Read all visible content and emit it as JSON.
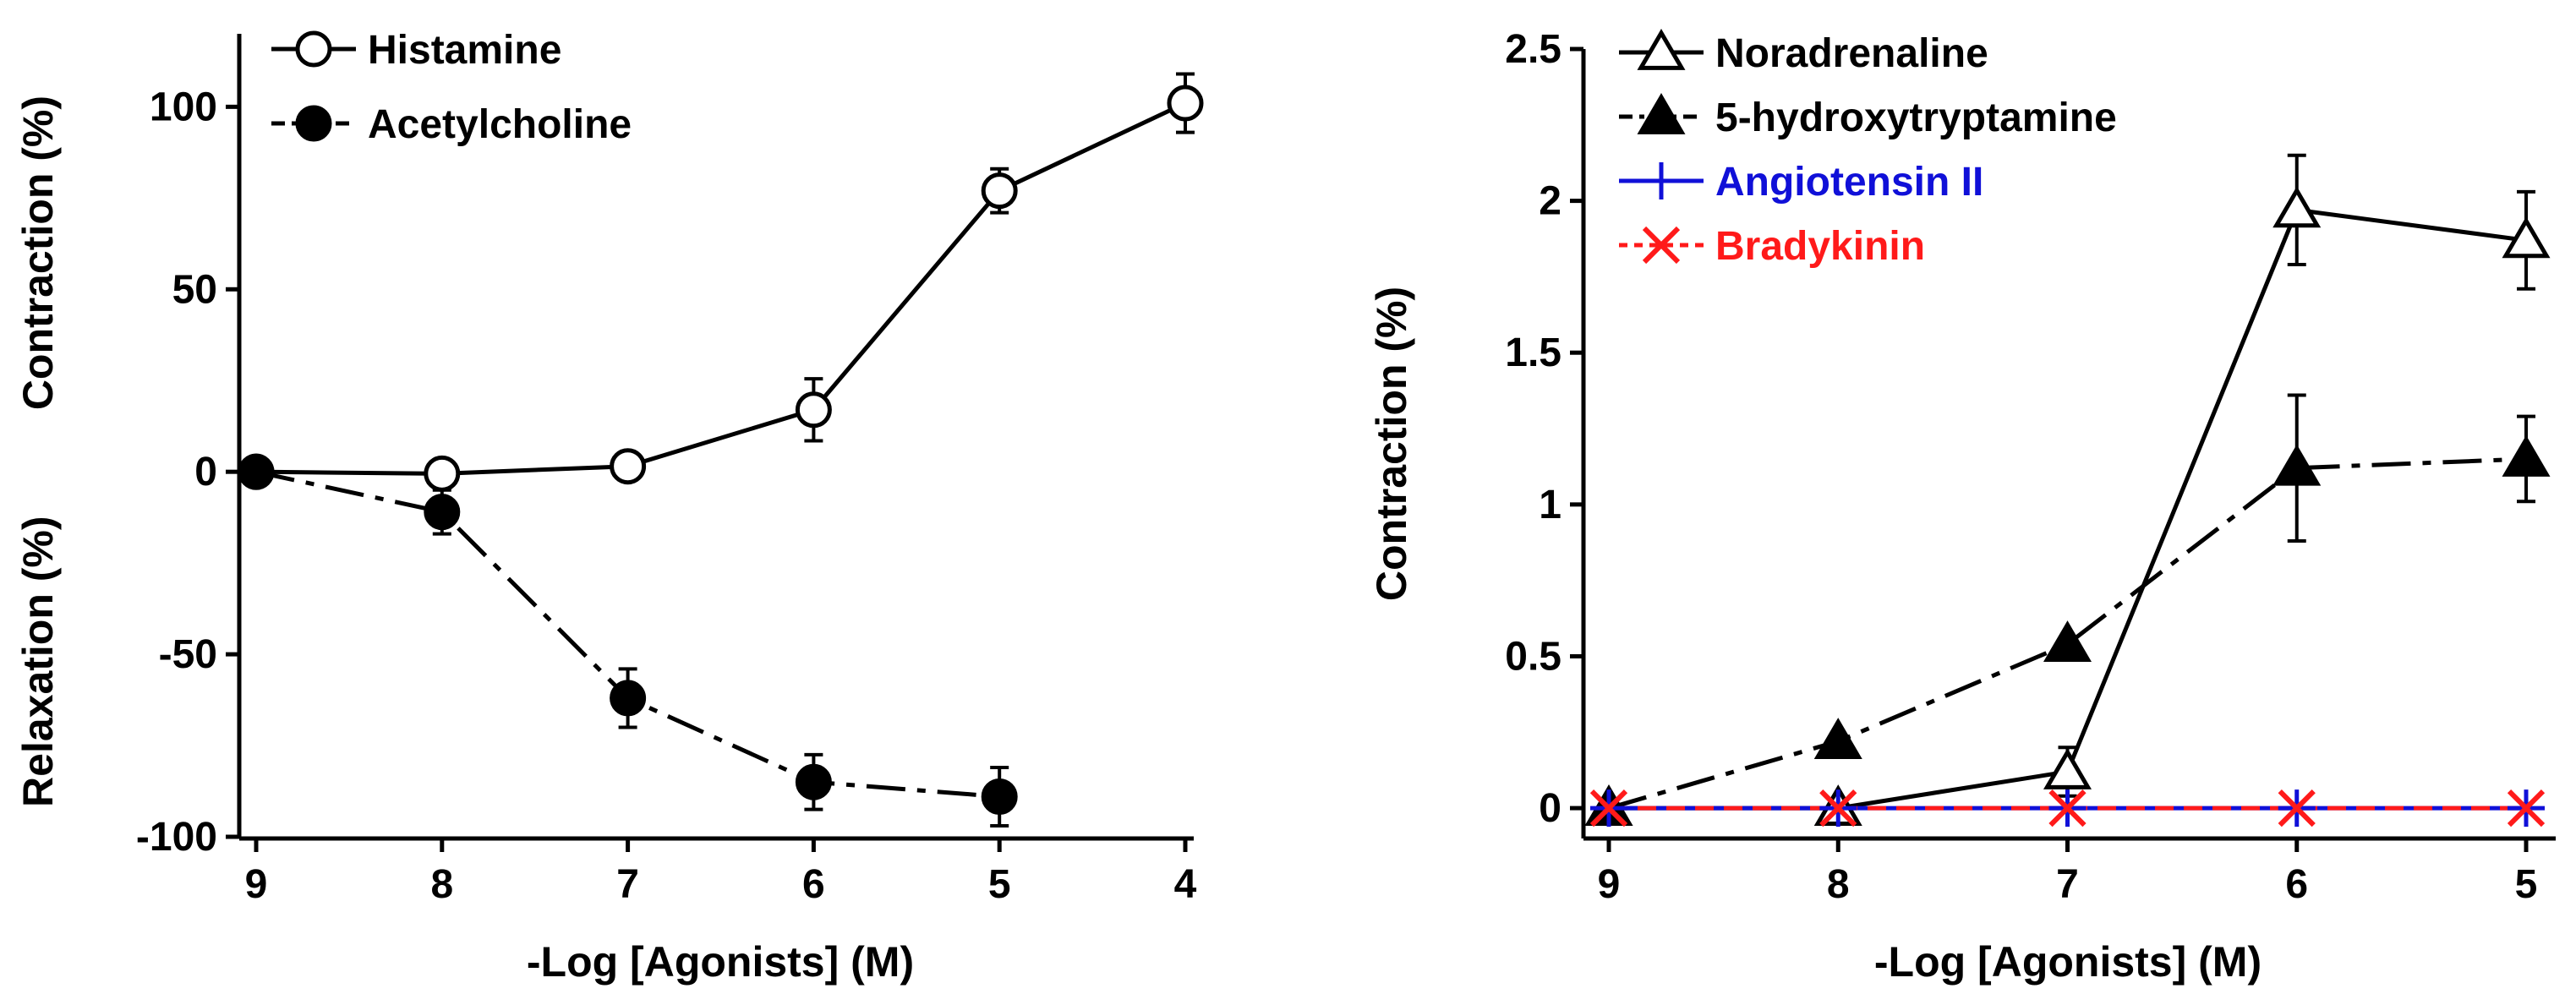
{
  "colors": {
    "black": "#000000",
    "blue": "#1010d8",
    "red": "#ff1a1a"
  },
  "chart_data": [
    {
      "type": "line",
      "panel": "left",
      "title": "",
      "xlabel": "-Log [Agonists] (M)",
      "ylabel_upper": "Contraction (%)",
      "ylabel_lower": "Relaxation (%)",
      "xlim": [
        9,
        4
      ],
      "ylim": [
        -100,
        120
      ],
      "x_ticks": [
        9,
        8,
        7,
        6,
        5,
        4
      ],
      "y_ticks": [
        100,
        50,
        0,
        -50,
        -100
      ],
      "legend_position": "top-left",
      "series": [
        {
          "name": "Histamine",
          "marker": "open-circle",
          "line": "solid",
          "color": "#000000",
          "x": [
            9,
            8,
            7,
            6,
            5,
            4
          ],
          "y": [
            0,
            -0.5,
            1.5,
            17,
            77,
            101
          ],
          "err": [
            0,
            0,
            0,
            8.5,
            6,
            8
          ]
        },
        {
          "name": "Acetylcholine",
          "marker": "filled-circle",
          "line": "dashdot",
          "color": "#000000",
          "x": [
            9,
            8,
            7,
            6,
            5
          ],
          "y": [
            0,
            -11,
            -62,
            -85,
            -89
          ],
          "err": [
            0,
            6,
            8,
            7.5,
            8
          ]
        }
      ]
    },
    {
      "type": "line",
      "panel": "right",
      "title": "",
      "xlabel": "-Log [Agonists] (M)",
      "ylabel": "Contraction (%)",
      "xlim": [
        9,
        5
      ],
      "ylim": [
        -0.1,
        2.5
      ],
      "x_ticks": [
        9,
        8,
        7,
        6,
        5
      ],
      "y_ticks": [
        2.5,
        2,
        1.5,
        1,
        0.5,
        0
      ],
      "y_tick_labels": [
        "2.5",
        "2",
        "1.5",
        "1",
        "0.5",
        "0"
      ],
      "legend_position": "top-left",
      "series": [
        {
          "name": "Noradrenaline",
          "marker": "open-triangle",
          "line": "solid",
          "color": "#000000",
          "x": [
            9,
            8,
            7,
            6,
            5
          ],
          "y": [
            0,
            0,
            0.12,
            1.97,
            1.87
          ],
          "err": [
            0,
            0,
            0.08,
            0.18,
            0.16
          ]
        },
        {
          "name": "5-hydroxytryptamine",
          "marker": "filled-triangle",
          "line": "dashdot",
          "color": "#000000",
          "x": [
            9,
            8,
            7,
            6,
            5
          ],
          "y": [
            0,
            0.22,
            0.54,
            1.12,
            1.15
          ],
          "err": [
            0,
            0,
            0,
            0.24,
            0.14
          ]
        },
        {
          "name": "Angiotensin II",
          "marker": "plus",
          "line": "solid",
          "color": "#1010d8",
          "x": [
            9,
            8,
            7,
            6,
            5
          ],
          "y": [
            0,
            0,
            0,
            0,
            0
          ],
          "err": [
            0,
            0,
            0,
            0,
            0
          ]
        },
        {
          "name": "Bradykinin",
          "marker": "x",
          "line": "dashed",
          "color": "#ff1a1a",
          "x": [
            9,
            8,
            7,
            6,
            5
          ],
          "y": [
            0,
            0,
            0,
            0,
            0
          ],
          "err": [
            0,
            0,
            0,
            0,
            0
          ]
        }
      ]
    }
  ]
}
